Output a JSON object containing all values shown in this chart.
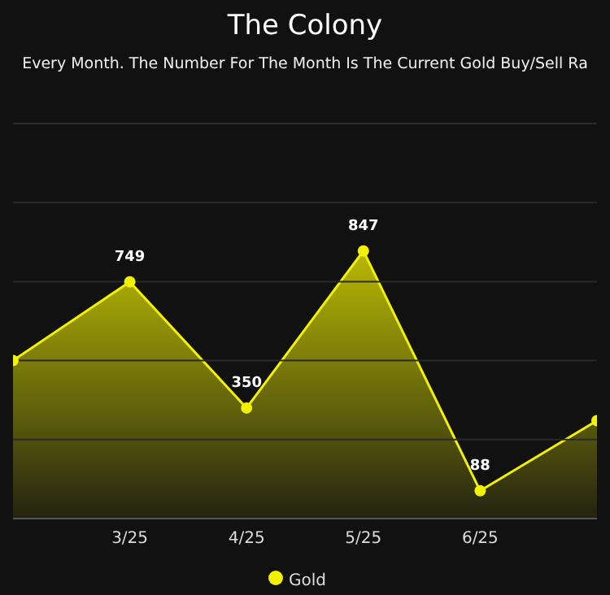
{
  "chart_data": {
    "type": "area",
    "title": "The Colony",
    "subtitle": "Every Month. The Number For The Month Is The Current Gold Buy/Sell Ra",
    "categories": [
      null,
      "3/25",
      "4/25",
      "5/25",
      "6/25",
      null
    ],
    "series": [
      {
        "name": "Gold",
        "color": "#f2f200",
        "values": [
          500,
          749,
          350,
          847,
          88,
          310
        ],
        "value_labels": [
          null,
          "749",
          "350",
          "847",
          "88",
          null
        ]
      }
    ],
    "ylim": [
      0,
      1250
    ],
    "yticks": [
      {
        "value": 0,
        "label": null
      },
      {
        "value": 250,
        "label": null
      },
      {
        "value": 500,
        "label": null
      },
      {
        "value": 750,
        "label": null
      },
      {
        "value": 1000,
        "label": null
      },
      {
        "value": 1250,
        "label": null
      }
    ],
    "grid": "y",
    "legend": "bottom",
    "marker": "circle",
    "tick_labels": "x"
  }
}
